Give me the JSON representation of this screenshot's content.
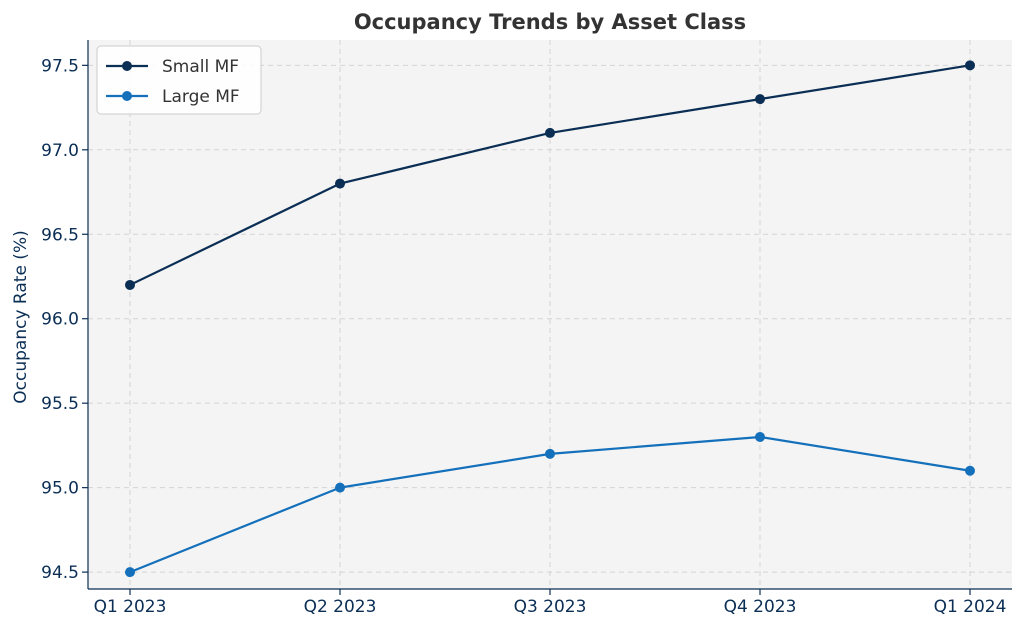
{
  "chart_data": {
    "type": "line",
    "title": "Occupancy Trends by Asset Class",
    "xlabel": "",
    "ylabel": "Occupancy Rate (%)",
    "categories": [
      "Q1 2023",
      "Q2 2023",
      "Q3 2023",
      "Q4 2023",
      "Q1 2024"
    ],
    "ylim": [
      94.4,
      97.65
    ],
    "yticks": [
      "94.5",
      "95.0",
      "95.5",
      "96.0",
      "96.5",
      "97.0",
      "97.5"
    ],
    "grid": true,
    "legend_position": "top-left",
    "series": [
      {
        "name": "Small MF",
        "color": "#0b2e55",
        "values": [
          96.2,
          96.8,
          97.1,
          97.3,
          97.5
        ]
      },
      {
        "name": "Large MF",
        "color": "#1470bb",
        "values": [
          94.5,
          95.0,
          95.2,
          95.3,
          95.1
        ]
      }
    ]
  }
}
